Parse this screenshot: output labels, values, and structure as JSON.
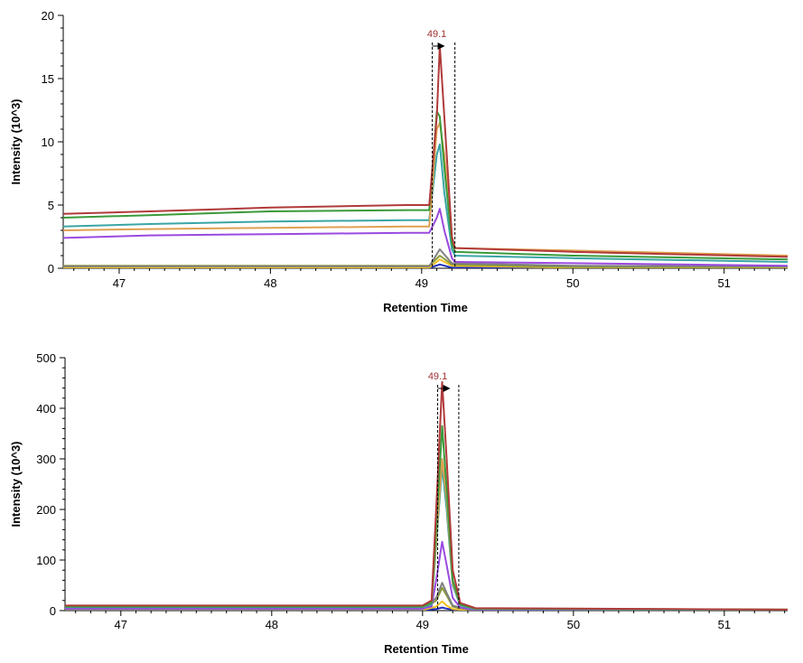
{
  "colors": {
    "red": "#b03a3a",
    "green": "#3a9a3a",
    "teal": "#3aa5a5",
    "orange": "#e0a050",
    "purple": "#9a4ae0",
    "gray": "#808080",
    "olive": "#8a9a3a",
    "yellow": "#f0c020",
    "blue": "#2030c0",
    "peak_label": "#a03030"
  },
  "chart_data": [
    {
      "type": "line",
      "xlabel": "Retention Time",
      "ylabel": "Intensity (10^3)",
      "xlim": [
        46.63,
        51.42
      ],
      "ylim": [
        0,
        20
      ],
      "xticks": [
        "47",
        "48",
        "49",
        "50",
        "51"
      ],
      "yticks": [
        "0",
        "5",
        "10",
        "15",
        "20"
      ],
      "grid": false,
      "peak_annotation": {
        "label": "49.1",
        "x": 49.1,
        "boundary_left": 49.07,
        "boundary_right": 49.22
      },
      "series": [
        {
          "color": "red",
          "values": [
            [
              46.63,
              4.3
            ],
            [
              47.2,
              4.5
            ],
            [
              48,
              4.8
            ],
            [
              48.9,
              5.0
            ],
            [
              49.05,
              5.0
            ],
            [
              49.1,
              12
            ],
            [
              49.12,
              17.6
            ],
            [
              49.15,
              12
            ],
            [
              49.2,
              2.5
            ],
            [
              49.22,
              1.6
            ],
            [
              50,
              1.3
            ],
            [
              51.42,
              0.9
            ]
          ]
        },
        {
          "color": "green",
          "values": [
            [
              46.63,
              4.0
            ],
            [
              47.2,
              4.2
            ],
            [
              48,
              4.5
            ],
            [
              48.9,
              4.6
            ],
            [
              49.05,
              4.6
            ],
            [
              49.1,
              12.4
            ],
            [
              49.12,
              12
            ],
            [
              49.15,
              8
            ],
            [
              49.2,
              2
            ],
            [
              49.22,
              1.3
            ],
            [
              50,
              1.0
            ],
            [
              51.42,
              0.7
            ]
          ]
        },
        {
          "color": "orange",
          "values": [
            [
              46.63,
              3.0
            ],
            [
              47.2,
              3.1
            ],
            [
              48,
              3.2
            ],
            [
              48.9,
              3.3
            ],
            [
              49.05,
              3.3
            ],
            [
              49.1,
              11
            ],
            [
              49.12,
              11.5
            ],
            [
              49.15,
              9
            ],
            [
              49.2,
              2.5
            ],
            [
              49.22,
              1.6
            ],
            [
              50,
              1.4
            ],
            [
              51.42,
              1.0
            ]
          ]
        },
        {
          "color": "teal",
          "values": [
            [
              46.63,
              3.3
            ],
            [
              47.2,
              3.5
            ],
            [
              48,
              3.7
            ],
            [
              48.9,
              3.8
            ],
            [
              49.05,
              3.8
            ],
            [
              49.1,
              9
            ],
            [
              49.12,
              9.8
            ],
            [
              49.15,
              6
            ],
            [
              49.2,
              1.5
            ],
            [
              49.22,
              1.0
            ],
            [
              50,
              0.8
            ],
            [
              51.42,
              0.5
            ]
          ]
        },
        {
          "color": "purple",
          "values": [
            [
              46.63,
              2.4
            ],
            [
              47.2,
              2.6
            ],
            [
              48,
              2.7
            ],
            [
              48.9,
              2.8
            ],
            [
              49.05,
              2.8
            ],
            [
              49.1,
              4
            ],
            [
              49.12,
              4.7
            ],
            [
              49.15,
              3
            ],
            [
              49.2,
              0.8
            ],
            [
              49.22,
              0.5
            ],
            [
              50,
              0.4
            ],
            [
              51.42,
              0.2
            ]
          ]
        },
        {
          "color": "gray",
          "values": [
            [
              46.63,
              0.15
            ],
            [
              49.05,
              0.15
            ],
            [
              49.12,
              1.5
            ],
            [
              49.2,
              0.4
            ],
            [
              50,
              0.2
            ],
            [
              51.42,
              0.15
            ]
          ]
        },
        {
          "color": "olive",
          "values": [
            [
              46.63,
              0.2
            ],
            [
              49.05,
              0.2
            ],
            [
              49.12,
              1.0
            ],
            [
              49.2,
              0.3
            ],
            [
              50,
              0.1
            ],
            [
              51.42,
              0.1
            ]
          ]
        },
        {
          "color": "yellow",
          "values": [
            [
              46.63,
              0.05
            ],
            [
              49.05,
              0.05
            ],
            [
              49.12,
              0.7
            ],
            [
              49.2,
              0.2
            ],
            [
              50,
              0.05
            ],
            [
              51.42,
              0.05
            ]
          ]
        },
        {
          "color": "blue",
          "values": [
            [
              46.63,
              0.03
            ],
            [
              49.05,
              0.03
            ],
            [
              49.12,
              0.3
            ],
            [
              49.2,
              0.05
            ],
            [
              51.42,
              0.03
            ]
          ]
        }
      ]
    },
    {
      "type": "line",
      "xlabel": "Retention Time",
      "ylabel": "Intensity (10^3)",
      "xlim": [
        46.63,
        51.42
      ],
      "ylim": [
        0,
        500
      ],
      "xticks": [
        "47",
        "48",
        "49",
        "50",
        "51"
      ],
      "yticks": [
        "0",
        "100",
        "200",
        "300",
        "400",
        "500"
      ],
      "grid": false,
      "peak_annotation": {
        "label": "49.1",
        "x": 49.1,
        "boundary_left": 49.1,
        "boundary_right": 49.24
      },
      "series": [
        {
          "color": "red",
          "values": [
            [
              46.63,
              10
            ],
            [
              49.0,
              10
            ],
            [
              49.06,
              20
            ],
            [
              49.09,
              200
            ],
            [
              49.13,
              452
            ],
            [
              49.16,
              300
            ],
            [
              49.2,
              80
            ],
            [
              49.25,
              15
            ],
            [
              49.35,
              5
            ],
            [
              51.42,
              2
            ]
          ]
        },
        {
          "color": "green",
          "values": [
            [
              46.63,
              8
            ],
            [
              49.0,
              8
            ],
            [
              49.06,
              15
            ],
            [
              49.09,
              160
            ],
            [
              49.13,
              365
            ],
            [
              49.16,
              240
            ],
            [
              49.2,
              60
            ],
            [
              49.25,
              12
            ],
            [
              49.35,
              4
            ],
            [
              51.42,
              2
            ]
          ]
        },
        {
          "color": "orange",
          "values": [
            [
              46.63,
              8
            ],
            [
              49.0,
              8
            ],
            [
              49.06,
              15
            ],
            [
              49.09,
              140
            ],
            [
              49.13,
              300
            ],
            [
              49.16,
              220
            ],
            [
              49.2,
              55
            ],
            [
              49.25,
              12
            ],
            [
              49.35,
              4
            ],
            [
              51.42,
              2
            ]
          ]
        },
        {
          "color": "teal",
          "values": [
            [
              46.63,
              7
            ],
            [
              49.0,
              7
            ],
            [
              49.06,
              12
            ],
            [
              49.09,
              130
            ],
            [
              49.13,
              285
            ],
            [
              49.16,
              200
            ],
            [
              49.2,
              50
            ],
            [
              49.25,
              10
            ],
            [
              49.35,
              3
            ],
            [
              51.42,
              1
            ]
          ]
        },
        {
          "color": "purple",
          "values": [
            [
              46.63,
              4
            ],
            [
              49.0,
              4
            ],
            [
              49.06,
              8
            ],
            [
              49.09,
              60
            ],
            [
              49.13,
              136
            ],
            [
              49.16,
              90
            ],
            [
              49.2,
              25
            ],
            [
              49.25,
              6
            ],
            [
              49.35,
              2
            ],
            [
              51.42,
              1
            ]
          ]
        },
        {
          "color": "gray",
          "values": [
            [
              46.63,
              2
            ],
            [
              49.0,
              2
            ],
            [
              49.09,
              25
            ],
            [
              49.13,
              55
            ],
            [
              49.16,
              35
            ],
            [
              49.2,
              10
            ],
            [
              49.3,
              2
            ],
            [
              51.42,
              1
            ]
          ]
        },
        {
          "color": "olive",
          "values": [
            [
              46.63,
              2
            ],
            [
              49.0,
              2
            ],
            [
              49.09,
              20
            ],
            [
              49.13,
              45
            ],
            [
              49.16,
              30
            ],
            [
              49.2,
              8
            ],
            [
              49.3,
              2
            ],
            [
              51.42,
              1
            ]
          ]
        },
        {
          "color": "yellow",
          "values": [
            [
              46.63,
              1
            ],
            [
              49.0,
              1
            ],
            [
              49.09,
              8
            ],
            [
              49.13,
              18
            ],
            [
              49.16,
              10
            ],
            [
              49.2,
              3
            ],
            [
              49.3,
              1
            ],
            [
              51.42,
              0
            ]
          ]
        },
        {
          "color": "blue",
          "values": [
            [
              46.63,
              1
            ],
            [
              49.0,
              1
            ],
            [
              49.09,
              3
            ],
            [
              49.13,
              6
            ],
            [
              49.16,
              4
            ],
            [
              49.2,
              2
            ],
            [
              49.3,
              1
            ],
            [
              51.42,
              0
            ]
          ]
        }
      ]
    }
  ]
}
